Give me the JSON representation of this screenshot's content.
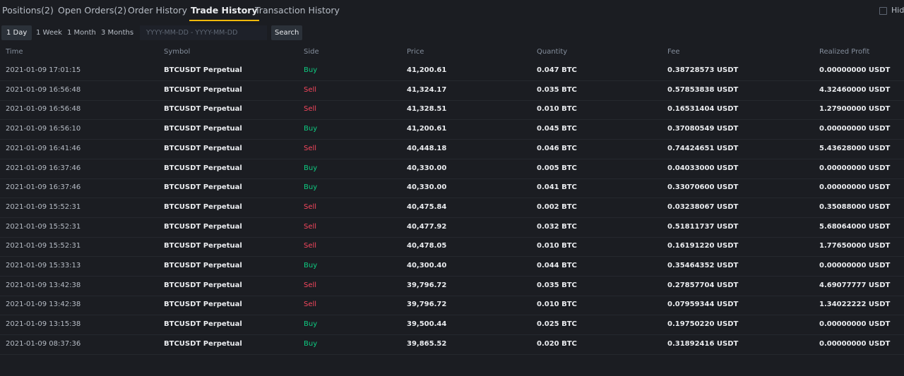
{
  "tabs": {
    "items": [
      "Positions(2)",
      "Open Orders(2)",
      "Order History",
      "Trade History",
      "Transaction History"
    ],
    "active": 3
  },
  "hide_checkbox": {
    "label": "Hid"
  },
  "filters": {
    "periods": [
      "1 Day",
      "1 Week",
      "1 Month",
      "3 Months"
    ],
    "active": 0,
    "date_placeholder": "YYYY-MM-DD - YYYY-MM-DD",
    "search": "Search"
  },
  "side_colors": {
    "Buy": "#0ecb81",
    "Sell": "#f6465d"
  },
  "table": {
    "headers": [
      "Time",
      "Symbol",
      "Side",
      "Price",
      "Quantity",
      "Fee",
      "Realized Profit"
    ],
    "rows": [
      [
        "2021-01-09 17:01:15",
        "BTCUSDT Perpetual",
        "Buy",
        "41,200.61",
        "0.047 BTC",
        "0.38728573 USDT",
        "0.00000000 USDT"
      ],
      [
        "2021-01-09 16:56:48",
        "BTCUSDT Perpetual",
        "Sell",
        "41,324.17",
        "0.035 BTC",
        "0.57853838 USDT",
        "4.32460000 USDT"
      ],
      [
        "2021-01-09 16:56:48",
        "BTCUSDT Perpetual",
        "Sell",
        "41,328.51",
        "0.010 BTC",
        "0.16531404 USDT",
        "1.27900000 USDT"
      ],
      [
        "2021-01-09 16:56:10",
        "BTCUSDT Perpetual",
        "Buy",
        "41,200.61",
        "0.045 BTC",
        "0.37080549 USDT",
        "0.00000000 USDT"
      ],
      [
        "2021-01-09 16:41:46",
        "BTCUSDT Perpetual",
        "Sell",
        "40,448.18",
        "0.046 BTC",
        "0.74424651 USDT",
        "5.43628000 USDT"
      ],
      [
        "2021-01-09 16:37:46",
        "BTCUSDT Perpetual",
        "Buy",
        "40,330.00",
        "0.005 BTC",
        "0.04033000 USDT",
        "0.00000000 USDT"
      ],
      [
        "2021-01-09 16:37:46",
        "BTCUSDT Perpetual",
        "Buy",
        "40,330.00",
        "0.041 BTC",
        "0.33070600 USDT",
        "0.00000000 USDT"
      ],
      [
        "2021-01-09 15:52:31",
        "BTCUSDT Perpetual",
        "Sell",
        "40,475.84",
        "0.002 BTC",
        "0.03238067 USDT",
        "0.35088000 USDT"
      ],
      [
        "2021-01-09 15:52:31",
        "BTCUSDT Perpetual",
        "Sell",
        "40,477.92",
        "0.032 BTC",
        "0.51811737 USDT",
        "5.68064000 USDT"
      ],
      [
        "2021-01-09 15:52:31",
        "BTCUSDT Perpetual",
        "Sell",
        "40,478.05",
        "0.010 BTC",
        "0.16191220 USDT",
        "1.77650000 USDT"
      ],
      [
        "2021-01-09 15:33:13",
        "BTCUSDT Perpetual",
        "Buy",
        "40,300.40",
        "0.044 BTC",
        "0.35464352 USDT",
        "0.00000000 USDT"
      ],
      [
        "2021-01-09 13:42:38",
        "BTCUSDT Perpetual",
        "Sell",
        "39,796.72",
        "0.035 BTC",
        "0.27857704 USDT",
        "4.69077777 USDT"
      ],
      [
        "2021-01-09 13:42:38",
        "BTCUSDT Perpetual",
        "Sell",
        "39,796.72",
        "0.010 BTC",
        "0.07959344 USDT",
        "1.34022222 USDT"
      ],
      [
        "2021-01-09 13:15:38",
        "BTCUSDT Perpetual",
        "Buy",
        "39,500.44",
        "0.025 BTC",
        "0.19750220 USDT",
        "0.00000000 USDT"
      ],
      [
        "2021-01-09 08:37:36",
        "BTCUSDT Perpetual",
        "Buy",
        "39,865.52",
        "0.020 BTC",
        "0.31892416 USDT",
        "0.00000000 USDT"
      ]
    ]
  }
}
